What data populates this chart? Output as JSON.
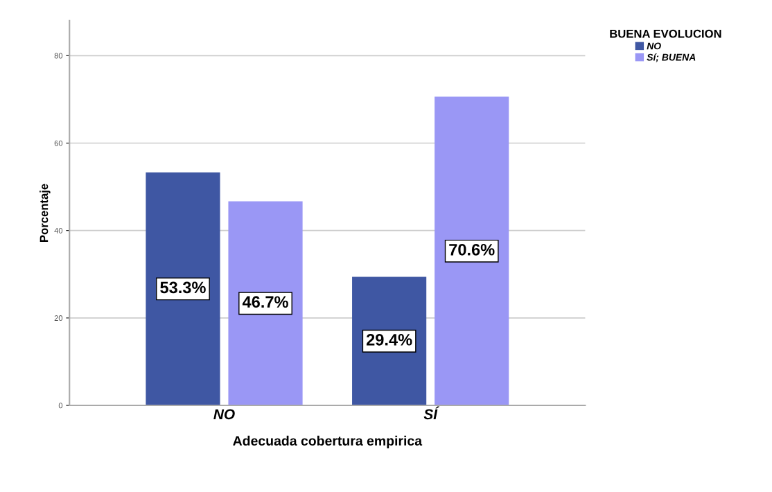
{
  "chart_data": {
    "type": "bar",
    "xlabel": "Adecuada cobertura empirica",
    "ylabel": "Porcentaje",
    "legend_title": "BUENA EVOLUCION",
    "legend": "top right",
    "categories": [
      "NO",
      "SÍ"
    ],
    "series": [
      {
        "name": "NO",
        "color": "#3f57a3",
        "values": [
          53.3,
          29.4
        ],
        "value_labels": [
          "53.3%",
          "29.4%"
        ]
      },
      {
        "name": "Sí; BUENA",
        "color": "#9a97f5",
        "values": [
          46.7,
          70.6
        ],
        "value_labels": [
          "46.7%",
          "70.6%"
        ]
      }
    ],
    "ylim": [
      0,
      88
    ],
    "yticks": [
      0,
      20,
      40,
      60,
      80
    ],
    "grid": "y"
  }
}
